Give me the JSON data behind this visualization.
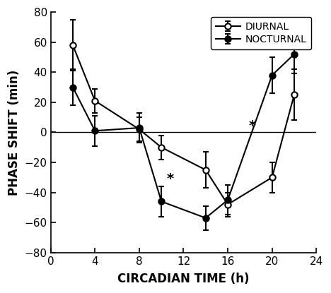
{
  "diurnal_x": [
    2,
    4,
    8,
    10,
    14,
    16,
    20,
    22
  ],
  "diurnal_y": [
    58,
    21,
    2,
    -10,
    -25,
    -48,
    -30,
    25
  ],
  "diurnal_yerr": [
    17,
    8,
    8,
    8,
    12,
    8,
    10,
    17
  ],
  "nocturnal_x": [
    2,
    4,
    8,
    10,
    14,
    16,
    20,
    22
  ],
  "nocturnal_y": [
    30,
    1,
    3,
    -46,
    -57,
    -45,
    38,
    52
  ],
  "nocturnal_yerr": [
    12,
    10,
    10,
    10,
    8,
    10,
    12,
    13
  ],
  "star1_x": 10.8,
  "star1_y": -31,
  "star2_x": 18.2,
  "star2_y": 4,
  "xlabel": "CIRCADIAN TIME (h)",
  "ylabel": "PHASE SHIFT (min)",
  "xlim": [
    0,
    24
  ],
  "ylim": [
    -80,
    80
  ],
  "xticks": [
    0,
    4,
    8,
    12,
    16,
    20,
    24
  ],
  "yticks": [
    -80,
    -60,
    -40,
    -20,
    0,
    20,
    40,
    60,
    80
  ],
  "legend_diurnal": "DIURNAL",
  "legend_nocturnal": "NOCTURNAL",
  "line_color": "#000000",
  "background_color": "#ffffff"
}
